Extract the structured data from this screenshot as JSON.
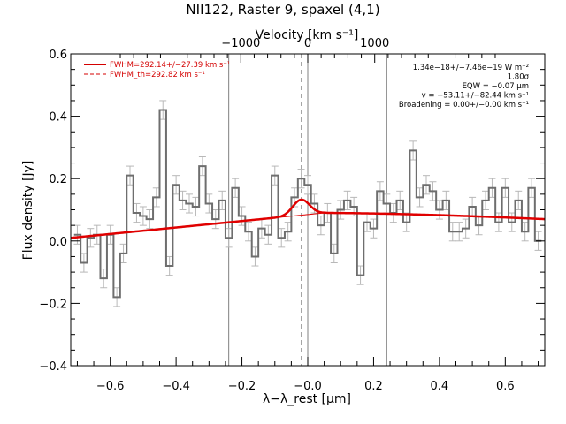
{
  "chart_data": {
    "type": "line",
    "title": "NII122, Raster 9, spaxel (4,1)",
    "xlabel": "λ−λ_rest [μm]",
    "ylabel": "Flux density [Jy]",
    "top_xlabel": "Velocity [km s⁻¹]",
    "xlim": [
      -0.72,
      0.72
    ],
    "ylim": [
      -0.4,
      0.6
    ],
    "x_ticks": [
      -0.6,
      -0.4,
      -0.2,
      0.0,
      0.2,
      0.4,
      0.6
    ],
    "x_tick_labels": [
      "−0.6",
      "−0.4",
      "−0.2",
      "−0.0",
      "0.2",
      "0.4",
      "0.6"
    ],
    "y_ticks": [
      -0.4,
      -0.2,
      0.0,
      0.2,
      0.4,
      0.6
    ],
    "y_tick_labels": [
      "−0.4",
      "−0.2",
      "0.0",
      "0.2",
      "0.4",
      "0.6"
    ],
    "top_ticks_velocity": [
      -1000,
      0,
      1000
    ],
    "top_tick_labels": [
      "−1000",
      "0",
      "1000"
    ],
    "vertical_lines_x": [
      -0.24,
      0.0,
      0.24
    ],
    "line_center_x": -0.02,
    "legend": [
      {
        "label": "FWHM=292.14+/−27.39 km s⁻¹",
        "style": "solid",
        "color": "#d40000"
      },
      {
        "label": "FWHM_th=292.82 km s⁻¹",
        "style": "dashed",
        "color": "#d40000"
      }
    ],
    "annotations": [
      "1.34e−18+/−7.46e−19 W m⁻²",
      "1.80σ",
      "EQW = −0.07 μm",
      "v = −53.11+/−82.44 km s⁻¹",
      "Broadening = 0.00+/−0.00 km s⁻¹"
    ],
    "spectrum": {
      "name": "",
      "bin_width": 0.02,
      "x": [
        -0.7,
        -0.68,
        -0.66,
        -0.64,
        -0.62,
        -0.6,
        -0.58,
        -0.56,
        -0.54,
        -0.52,
        -0.5,
        -0.48,
        -0.46,
        -0.44,
        -0.42,
        -0.4,
        -0.38,
        -0.36,
        -0.34,
        -0.32,
        -0.3,
        -0.28,
        -0.26,
        -0.24,
        -0.22,
        -0.2,
        -0.18,
        -0.16,
        -0.14,
        -0.12,
        -0.1,
        -0.08,
        -0.06,
        -0.04,
        -0.02,
        0.0,
        0.02,
        0.04,
        0.06,
        0.08,
        0.1,
        0.12,
        0.14,
        0.16,
        0.18,
        0.2,
        0.22,
        0.24,
        0.26,
        0.28,
        0.3,
        0.32,
        0.34,
        0.36,
        0.38,
        0.4,
        0.42,
        0.44,
        0.46,
        0.48,
        0.5,
        0.52,
        0.54,
        0.56,
        0.58,
        0.6,
        0.62,
        0.64,
        0.66,
        0.68,
        0.7
      ],
      "y": [
        0.02,
        -0.07,
        0.01,
        0.02,
        -0.12,
        0.02,
        -0.18,
        -0.04,
        0.21,
        0.09,
        0.08,
        0.07,
        0.14,
        0.42,
        -0.08,
        0.18,
        0.13,
        0.12,
        0.11,
        0.24,
        0.12,
        0.07,
        0.13,
        0.01,
        0.17,
        0.08,
        0.03,
        -0.05,
        0.04,
        0.02,
        0.21,
        0.01,
        0.03,
        0.14,
        0.2,
        0.18,
        0.12,
        0.05,
        0.09,
        -0.04,
        0.1,
        0.13,
        0.11,
        -0.11,
        0.06,
        0.04,
        0.16,
        0.12,
        0.09,
        0.13,
        0.06,
        0.29,
        0.14,
        0.18,
        0.16,
        0.1,
        0.13,
        0.03,
        0.03,
        0.04,
        0.11,
        0.05,
        0.13,
        0.17,
        0.06,
        0.17,
        0.06,
        0.13,
        0.03,
        0.17,
        0.0
      ],
      "err": 0.03
    },
    "fit_curve": {
      "continuum_start": 0.01,
      "continuum_end": 0.07,
      "continuum_peak": 0.09,
      "peak_x": 0.05,
      "gauss_amp": 0.05,
      "gauss_center": -0.02,
      "gauss_fwhm": 0.06
    }
  }
}
